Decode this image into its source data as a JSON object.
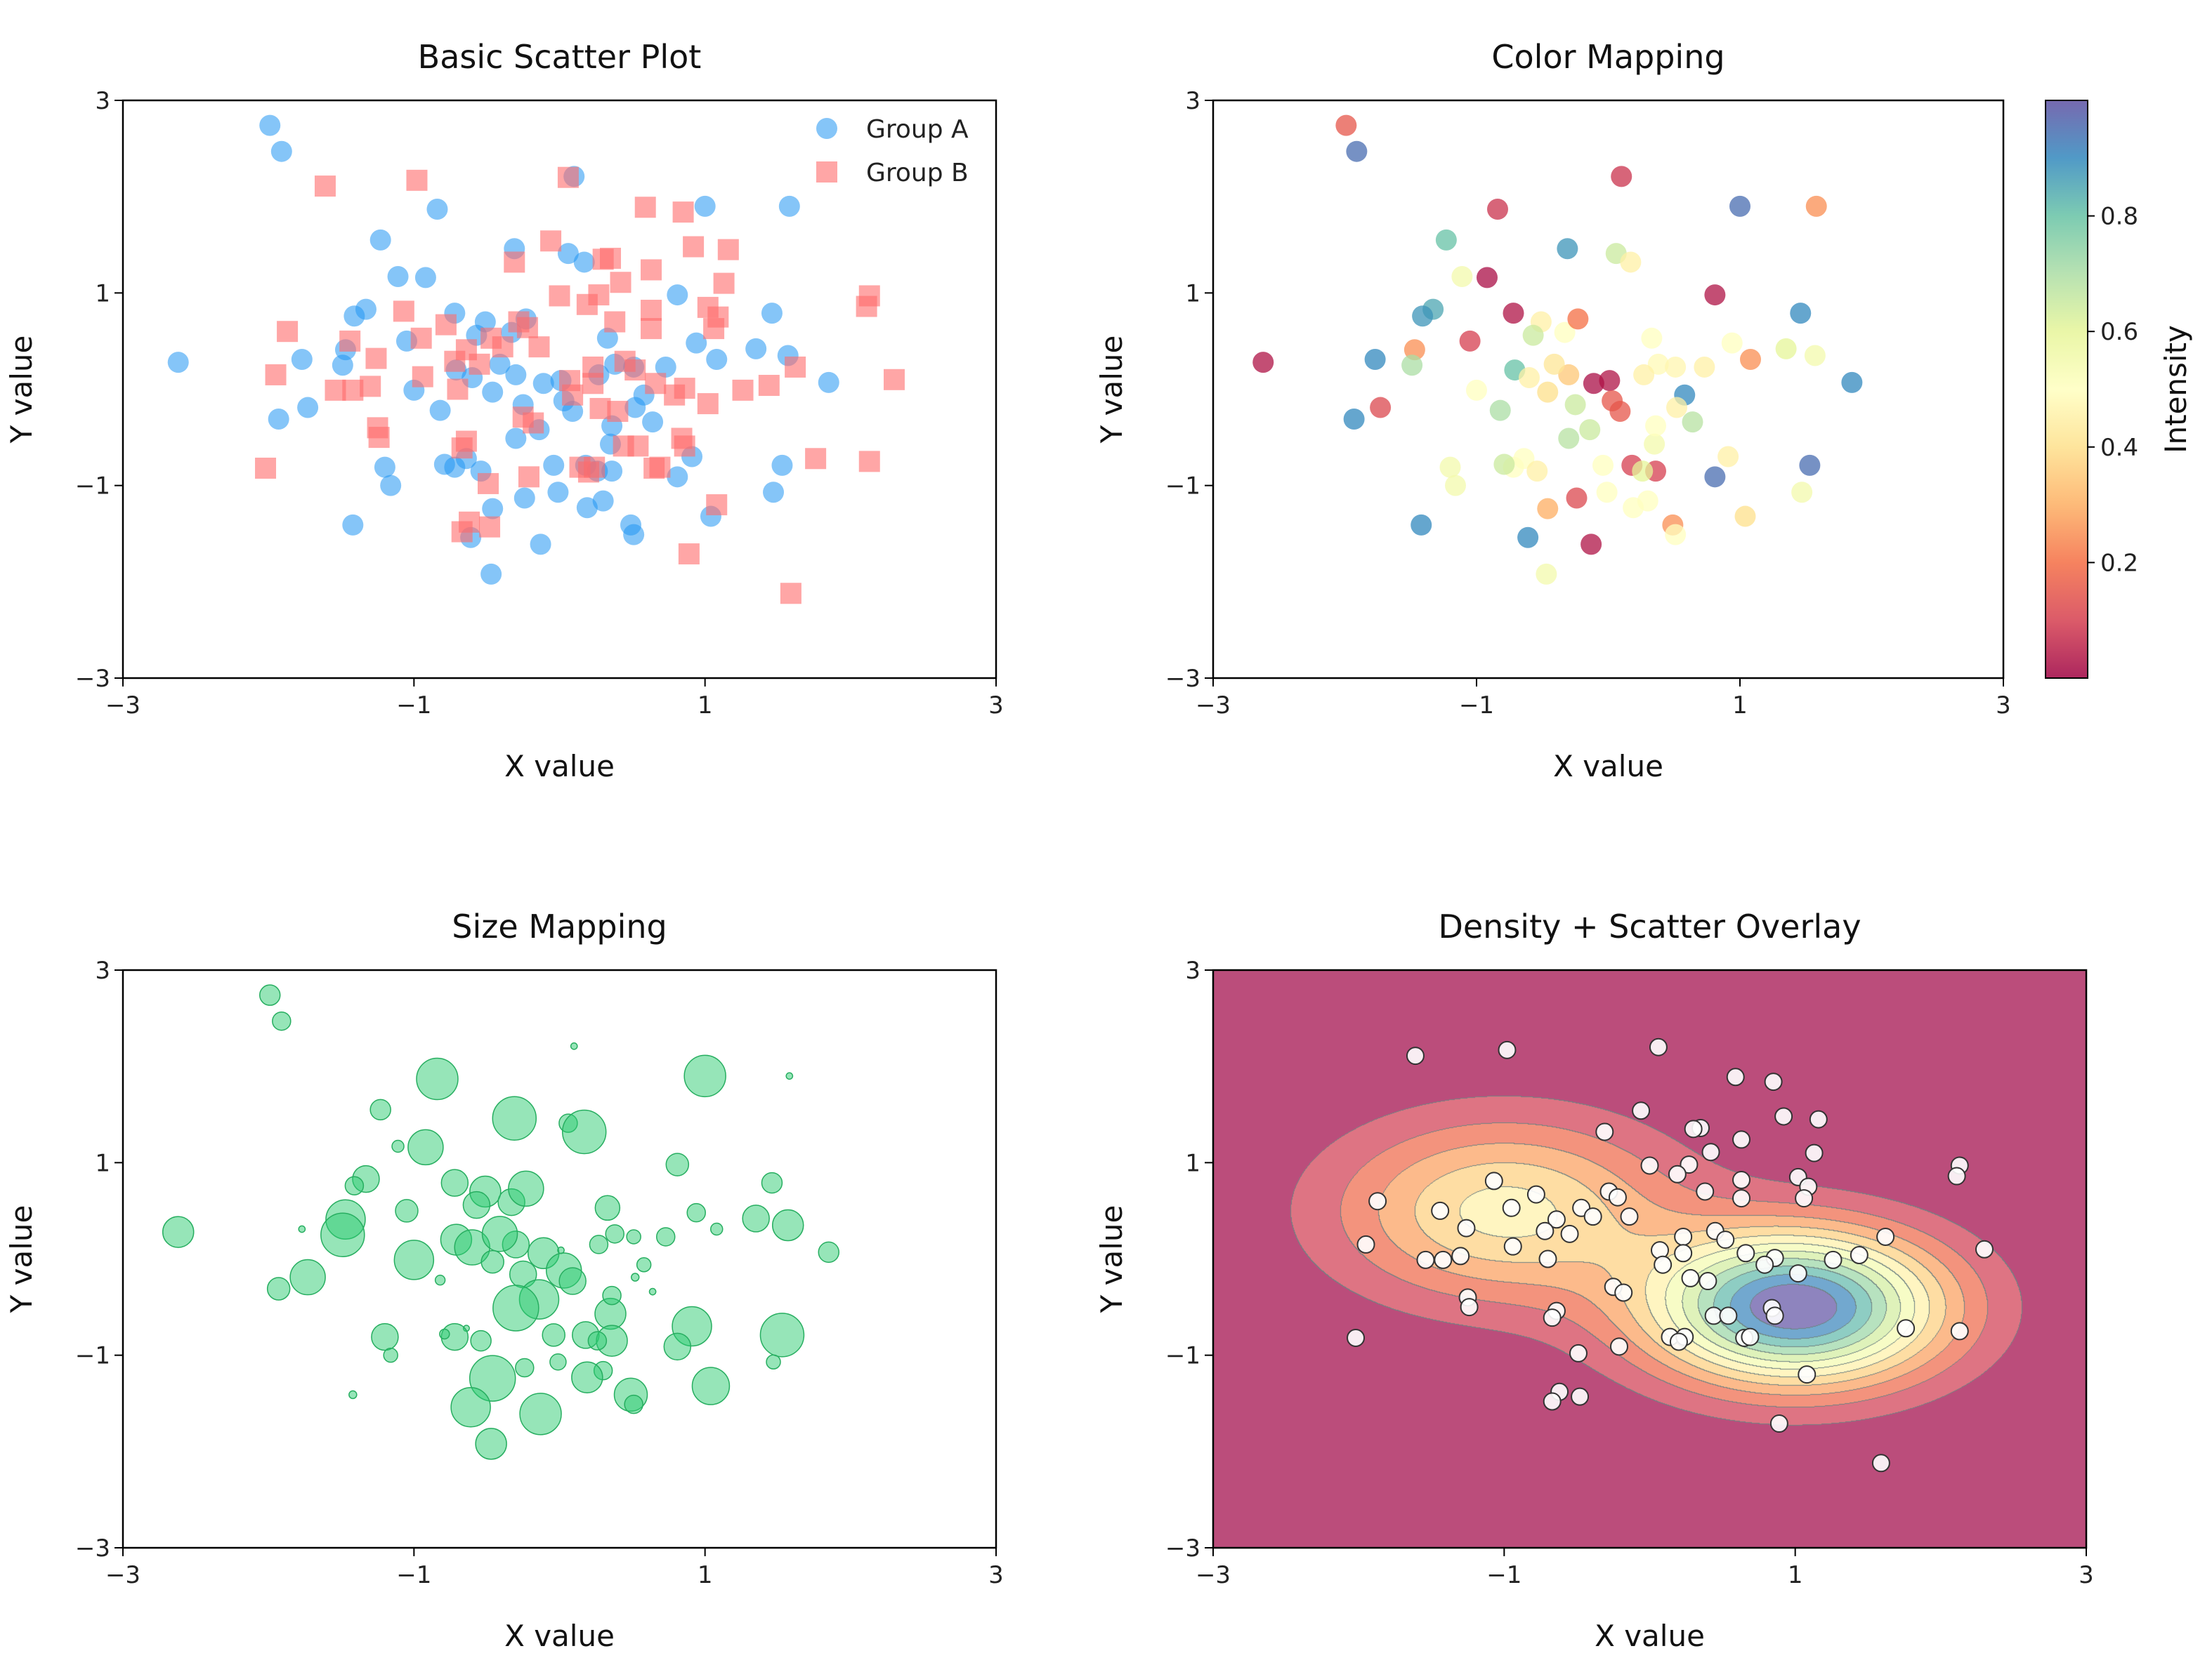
{
  "chart_data": [
    {
      "type": "scatter",
      "title": "Basic Scatter Plot",
      "xlabel": "X value",
      "ylabel": "Y value",
      "xlim": [
        -3,
        3
      ],
      "ylim": [
        -3,
        3
      ],
      "xticks": [
        -3,
        -1,
        1,
        3
      ],
      "yticks": [
        -3,
        -1,
        1,
        3
      ],
      "xtick_labels": [
        "−3",
        "−1",
        "1",
        "3"
      ],
      "ytick_labels": [
        "−3",
        "−1",
        "1",
        "3"
      ],
      "legend": "top-right",
      "grid": false,
      "series": [
        {
          "name": "Group A",
          "marker": "circle",
          "color": "#2196f3",
          "points": [
            [
              -1.99,
              2.74
            ],
            [
              -1.91,
              2.47
            ],
            [
              0.1,
              2.21
            ],
            [
              -0.84,
              1.87
            ],
            [
              1.0,
              1.9
            ],
            [
              1.58,
              1.9
            ],
            [
              -1.23,
              1.55
            ],
            [
              -0.31,
              1.46
            ],
            [
              0.06,
              1.41
            ],
            [
              0.17,
              1.32
            ],
            [
              -1.11,
              1.17
            ],
            [
              -0.92,
              1.16
            ],
            [
              0.81,
              0.98
            ],
            [
              1.46,
              0.79
            ],
            [
              -1.33,
              0.83
            ],
            [
              -1.41,
              0.76
            ],
            [
              -0.72,
              0.79
            ],
            [
              -0.51,
              0.7
            ],
            [
              -0.33,
              0.59
            ],
            [
              -0.23,
              0.73
            ],
            [
              -0.57,
              0.56
            ],
            [
              -1.05,
              0.5
            ],
            [
              -1.47,
              0.41
            ],
            [
              -1.77,
              0.31
            ],
            [
              -2.62,
              0.28
            ],
            [
              -1.49,
              0.25
            ],
            [
              -0.71,
              0.2
            ],
            [
              -0.6,
              0.12
            ],
            [
              -0.3,
              0.15
            ],
            [
              -0.11,
              0.06
            ],
            [
              0.01,
              0.09
            ],
            [
              -0.41,
              0.26
            ],
            [
              0.33,
              0.53
            ],
            [
              0.38,
              0.26
            ],
            [
              0.73,
              0.23
            ],
            [
              0.51,
              0.23
            ],
            [
              0.27,
              0.15
            ],
            [
              -1.0,
              -0.01
            ],
            [
              -0.46,
              -0.03
            ],
            [
              0.03,
              -0.12
            ],
            [
              0.58,
              -0.06
            ],
            [
              -1.93,
              -0.31
            ],
            [
              -1.73,
              -0.19
            ],
            [
              -0.82,
              -0.22
            ],
            [
              -0.25,
              -0.16
            ],
            [
              0.09,
              -0.23
            ],
            [
              0.52,
              -0.19
            ],
            [
              0.64,
              -0.34
            ],
            [
              -0.14,
              -0.42
            ],
            [
              -0.3,
              -0.51
            ],
            [
              0.35,
              -0.57
            ],
            [
              0.91,
              -0.7
            ],
            [
              -0.64,
              -0.72
            ],
            [
              -1.2,
              -0.81
            ],
            [
              -0.72,
              -0.81
            ],
            [
              -0.54,
              -0.85
            ],
            [
              0.18,
              -0.79
            ],
            [
              -0.04,
              -0.79
            ],
            [
              0.36,
              -0.85
            ],
            [
              0.26,
              -0.85
            ],
            [
              0.81,
              -0.91
            ],
            [
              1.53,
              -0.79
            ],
            [
              -1.16,
              -1.0
            ],
            [
              -0.01,
              -1.07
            ],
            [
              -0.24,
              -1.13
            ],
            [
              0.3,
              -1.16
            ],
            [
              0.19,
              -1.23
            ],
            [
              -0.46,
              -1.24
            ],
            [
              1.04,
              -1.32
            ],
            [
              1.47,
              -1.07
            ],
            [
              -1.42,
              -1.41
            ],
            [
              0.49,
              -1.41
            ],
            [
              -0.61,
              -1.54
            ],
            [
              0.51,
              -1.51
            ],
            [
              -0.13,
              -1.61
            ],
            [
              -0.47,
              -1.92
            ],
            [
              1.35,
              0.42
            ],
            [
              1.57,
              0.35
            ],
            [
              1.85,
              0.07
            ],
            [
              0.94,
              0.48
            ],
            [
              1.08,
              0.31
            ],
            [
              0.36,
              -0.38
            ],
            [
              -0.79,
              -0.78
            ]
          ]
        },
        {
          "name": "Group B",
          "marker": "square",
          "color": "#ff6b6b",
          "points": [
            [
              -1.61,
              2.11
            ],
            [
              -0.98,
              2.17
            ],
            [
              0.06,
              2.2
            ],
            [
              0.59,
              1.89
            ],
            [
              0.85,
              1.84
            ],
            [
              -0.06,
              1.54
            ],
            [
              -0.31,
              1.32
            ],
            [
              0.35,
              1.36
            ],
            [
              0.63,
              1.24
            ],
            [
              0.3,
              1.35
            ],
            [
              0.92,
              1.48
            ],
            [
              1.16,
              1.45
            ],
            [
              1.13,
              1.1
            ],
            [
              0.27,
              0.98
            ],
            [
              0.0,
              0.97
            ],
            [
              0.19,
              0.88
            ],
            [
              0.42,
              1.11
            ],
            [
              0.63,
              0.82
            ],
            [
              1.02,
              0.85
            ],
            [
              1.09,
              0.75
            ],
            [
              1.06,
              0.63
            ],
            [
              0.63,
              0.63
            ],
            [
              0.38,
              0.7
            ],
            [
              2.13,
              0.97
            ],
            [
              2.11,
              0.86
            ],
            [
              -1.07,
              0.81
            ],
            [
              -0.78,
              0.67
            ],
            [
              -1.87,
              0.6
            ],
            [
              -0.28,
              0.7
            ],
            [
              -0.22,
              0.64
            ],
            [
              -0.47,
              0.53
            ],
            [
              -0.95,
              0.53
            ],
            [
              -1.44,
              0.5
            ],
            [
              -0.64,
              0.41
            ],
            [
              -0.39,
              0.44
            ],
            [
              -0.14,
              0.44
            ],
            [
              -0.55,
              0.26
            ],
            [
              -0.72,
              0.29
            ],
            [
              0.23,
              0.23
            ],
            [
              0.45,
              0.29
            ],
            [
              0.52,
              0.2
            ],
            [
              0.07,
              0.09
            ],
            [
              0.23,
              0.06
            ],
            [
              0.66,
              0.06
            ],
            [
              0.86,
              0.01
            ],
            [
              -1.26,
              0.32
            ],
            [
              -1.95,
              0.15
            ],
            [
              -0.94,
              0.13
            ],
            [
              -1.3,
              0.03
            ],
            [
              -1.54,
              -0.01
            ],
            [
              -1.42,
              -0.01
            ],
            [
              -0.7,
              0.0
            ],
            [
              1.44,
              0.04
            ],
            [
              1.26,
              -0.01
            ],
            [
              1.62,
              0.23
            ],
            [
              2.3,
              0.1
            ],
            [
              -0.25,
              -0.29
            ],
            [
              0.4,
              -0.23
            ],
            [
              1.02,
              -0.15
            ],
            [
              0.79,
              -0.06
            ],
            [
              0.09,
              -0.06
            ],
            [
              -1.25,
              -0.4
            ],
            [
              -1.24,
              -0.5
            ],
            [
              -0.64,
              -0.54
            ],
            [
              -0.67,
              -0.61
            ],
            [
              0.14,
              -0.81
            ],
            [
              0.44,
              -0.59
            ],
            [
              0.54,
              -0.59
            ],
            [
              0.84,
              -0.51
            ],
            [
              0.24,
              -0.81
            ],
            [
              0.86,
              -0.59
            ],
            [
              0.65,
              -0.82
            ],
            [
              0.2,
              -0.86
            ],
            [
              0.69,
              -0.81
            ],
            [
              -2.02,
              -0.82
            ],
            [
              1.76,
              -0.72
            ],
            [
              2.13,
              -0.75
            ],
            [
              -0.21,
              -0.91
            ],
            [
              -0.49,
              -0.98
            ],
            [
              1.08,
              -1.2
            ],
            [
              -0.62,
              -1.38
            ],
            [
              -0.67,
              -1.48
            ],
            [
              -0.48,
              -1.43
            ],
            [
              0.89,
              -1.71
            ],
            [
              1.59,
              -2.12
            ],
            [
              -0.18,
              -0.35
            ],
            [
              0.28,
              -0.2
            ]
          ]
        }
      ]
    },
    {
      "type": "scatter",
      "title": "Color Mapping",
      "xlabel": "X value",
      "ylabel": "Y value",
      "xlim": [
        -3,
        3
      ],
      "ylim": [
        -3,
        3
      ],
      "xticks": [
        -3,
        -1,
        1,
        3
      ],
      "yticks": [
        -3,
        -1,
        1,
        3
      ],
      "xtick_labels": [
        "−3",
        "−1",
        "1",
        "3"
      ],
      "ytick_labels": [
        "−3",
        "−1",
        "1",
        "3"
      ],
      "grid": false,
      "colormap": "Spectral",
      "colorbar": {
        "label": "Intensity",
        "range": [
          0,
          1
        ],
        "ticks": [
          0.2,
          0.4,
          0.6,
          0.8
        ],
        "tick_labels": [
          "0.2",
          "0.4",
          "0.6",
          "0.8"
        ]
      },
      "intensity": [
        0.15,
        0.95,
        0.08,
        0.08,
        0.95,
        0.25,
        0.8,
        0.88,
        0.65,
        0.45,
        0.55,
        0.02,
        0.03,
        0.9,
        0.85,
        0.88,
        0.03,
        0.45,
        0.5,
        0.2,
        0.65,
        0.1,
        0.25,
        0.9,
        0.03,
        0.7,
        0.8,
        0.45,
        0.35,
        0.02,
        0.03,
        0.42,
        0.5,
        0.48,
        0.45,
        0.47,
        0.45,
        0.5,
        0.4,
        0.15,
        0.9,
        0.9,
        0.12,
        0.7,
        0.65,
        0.15,
        0.45,
        0.68,
        0.65,
        0.68,
        0.55,
        0.45,
        0.5,
        0.55,
        0.5,
        0.45,
        0.1,
        0.5,
        0.1,
        0.6,
        0.95,
        0.95,
        0.55,
        0.5,
        0.12,
        0.5,
        0.5,
        0.3,
        0.4,
        0.55,
        0.9,
        0.25,
        0.9,
        0.5,
        0.03,
        0.55,
        0.6,
        0.55,
        0.9,
        0.5,
        0.25,
        0.5,
        0.65
      ]
    },
    {
      "type": "scatter",
      "title": "Size Mapping",
      "xlabel": "X value",
      "ylabel": "Y value",
      "xlim": [
        -3,
        3
      ],
      "ylim": [
        -3,
        3
      ],
      "xticks": [
        -3,
        -1,
        1,
        3
      ],
      "yticks": [
        -3,
        -1,
        1,
        3
      ],
      "xtick_labels": [
        "−3",
        "−1",
        "1",
        "3"
      ],
      "ytick_labels": [
        "−3",
        "−1",
        "1",
        "3"
      ],
      "grid": false,
      "color": "#2ecc71",
      "relative_size": [
        0.35,
        0.3,
        0.02,
        0.85,
        0.85,
        0.02,
        0.35,
        0.9,
        0.3,
        0.9,
        0.15,
        0.7,
        0.4,
        0.35,
        0.5,
        0.3,
        0.5,
        0.6,
        0.5,
        0.7,
        0.5,
        0.4,
        0.8,
        0.02,
        0.6,
        0.9,
        0.6,
        0.7,
        0.5,
        0.6,
        0.02,
        0.7,
        0.45,
        0.3,
        0.3,
        0.2,
        0.3,
        0.8,
        0.4,
        0.7,
        0.2,
        0.4,
        0.7,
        0.1,
        0.5,
        0.5,
        0.05,
        0.02,
        0.8,
        0.95,
        0.6,
        0.8,
        0.01,
        0.5,
        0.5,
        0.35,
        0.5,
        0.4,
        0.6,
        0.3,
        0.5,
        0.9,
        0.2,
        0.25,
        0.3,
        0.3,
        0.6,
        0.95,
        0.75,
        0.2,
        0.05,
        0.65,
        0.8,
        0.3,
        0.85,
        0.6,
        0.5,
        0.6,
        0.35,
        0.3,
        0.15,
        0.3,
        0.1
      ]
    },
    {
      "type": "contour+scatter",
      "title": "Density + Scatter Overlay",
      "xlabel": "X value",
      "ylabel": "Y value",
      "xlim": [
        -3,
        3
      ],
      "ylim": [
        -3,
        3
      ],
      "xticks": [
        -3,
        -1,
        1,
        3
      ],
      "yticks": [
        -3,
        -1,
        1,
        3
      ],
      "xtick_labels": [
        "−3",
        "−1",
        "1",
        "3"
      ],
      "ytick_labels": [
        "−3",
        "−1",
        "1",
        "3"
      ],
      "grid": false,
      "colormap": "Spectral",
      "density_peaks": [
        [
          1.0,
          -0.5
        ],
        [
          -1.0,
          0.5
        ]
      ],
      "points_source": "Group B"
    }
  ]
}
